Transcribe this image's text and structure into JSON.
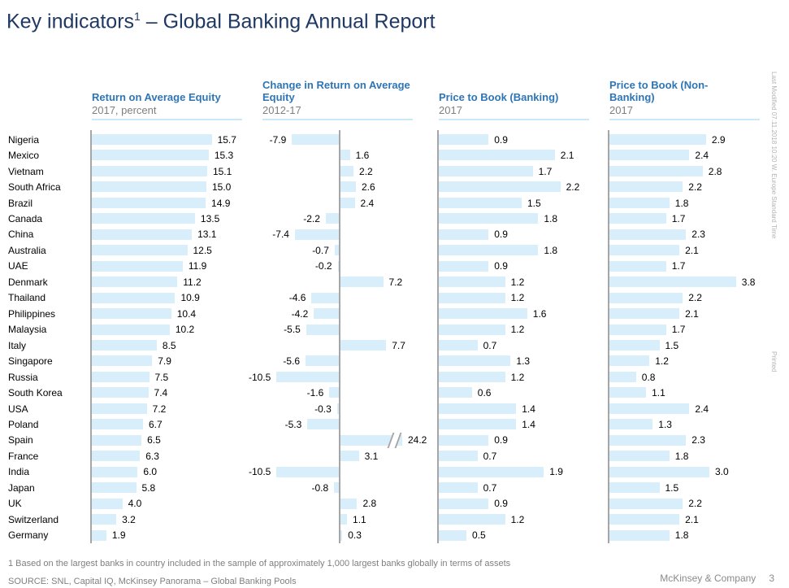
{
  "title": {
    "text": "Key indicators",
    "sup": "1",
    "suffix": " – Global Banking Annual Report"
  },
  "chart_data": {
    "type": "bar",
    "orientation": "horizontal",
    "categories": [
      "Nigeria",
      "Mexico",
      "Vietnam",
      "South Africa",
      "Brazil",
      "Canada",
      "China",
      "Australia",
      "UAE",
      "Denmark",
      "Thailand",
      "Philippines",
      "Malaysia",
      "Italy",
      "Singapore",
      "Russia",
      "South Korea",
      "USA",
      "Poland",
      "Spain",
      "France",
      "India",
      "Japan",
      "UK",
      "Switzerland",
      "Germany"
    ],
    "series": [
      {
        "name": "Return on Average Equity",
        "subtitle": "2017, percent",
        "values": [
          "15.7",
          "15.3",
          "15.1",
          "15.0",
          "14.9",
          "13.5",
          "13.1",
          "12.5",
          "11.9",
          "11.2",
          "10.9",
          "10.4",
          "10.2",
          "8.5",
          "7.9",
          "7.5",
          "7.4",
          "7.2",
          "6.7",
          "6.5",
          "6.3",
          "6.0",
          "5.8",
          "4.0",
          "3.2",
          "1.9"
        ]
      },
      {
        "name": "Change in Return on Average Equity",
        "subtitle": "2012-17",
        "diverging": true,
        "break_index": 19,
        "values": [
          "-7.9",
          "1.6",
          "2.2",
          "2.6",
          "2.4",
          "-2.2",
          "-7.4",
          "-0.7",
          "-0.2",
          "7.2",
          "-4.6",
          "-4.2",
          "-5.5",
          "7.7",
          "-5.6",
          "-10.5",
          "-1.6",
          "-0.3",
          "-5.3",
          "24.2",
          "3.1",
          "-10.5",
          "-0.8",
          "2.8",
          "1.1",
          "0.3"
        ]
      },
      {
        "name": "Price to Book (Banking)",
        "subtitle": "2017",
        "values": [
          "0.9",
          "2.1",
          "1.7",
          "2.2",
          "1.5",
          "1.8",
          "0.9",
          "1.8",
          "0.9",
          "1.2",
          "1.2",
          "1.6",
          "1.2",
          "0.7",
          "1.3",
          "1.2",
          "0.6",
          "1.4",
          "1.4",
          "0.9",
          "0.7",
          "1.9",
          "0.7",
          "0.9",
          "1.2",
          "0.5"
        ]
      },
      {
        "name": "Price to Book (Non-Banking)",
        "subtitle": "2017",
        "values": [
          "2.9",
          "2.4",
          "2.8",
          "2.2",
          "1.8",
          "1.7",
          "2.3",
          "2.1",
          "1.7",
          "3.8",
          "2.2",
          "2.1",
          "1.7",
          "1.5",
          "1.2",
          "0.8",
          "1.1",
          "2.4",
          "1.3",
          "2.3",
          "1.8",
          "3.0",
          "1.5",
          "2.2",
          "2.1",
          "1.8"
        ]
      }
    ],
    "colors": {
      "bar": "#d9eefb",
      "axis": "#a6a6a6",
      "header_blue": "#2e75b6",
      "title_navy": "#1f3864"
    },
    "legend_position": "none",
    "grid": false
  },
  "footer": {
    "footnote": "1 Based on the largest banks in country included in the sample of approximately 1,000 largest banks globally in terms of assets",
    "source": "SOURCE: SNL, Capital IQ, McKinsey Panorama – Global Banking Pools",
    "company": "McKinsey & Company",
    "page": "3"
  },
  "margin_notes": {
    "last_modified": "Last Modified 07.11.2018 10:20 W. Europe Standard Time",
    "printed": "Printed"
  }
}
